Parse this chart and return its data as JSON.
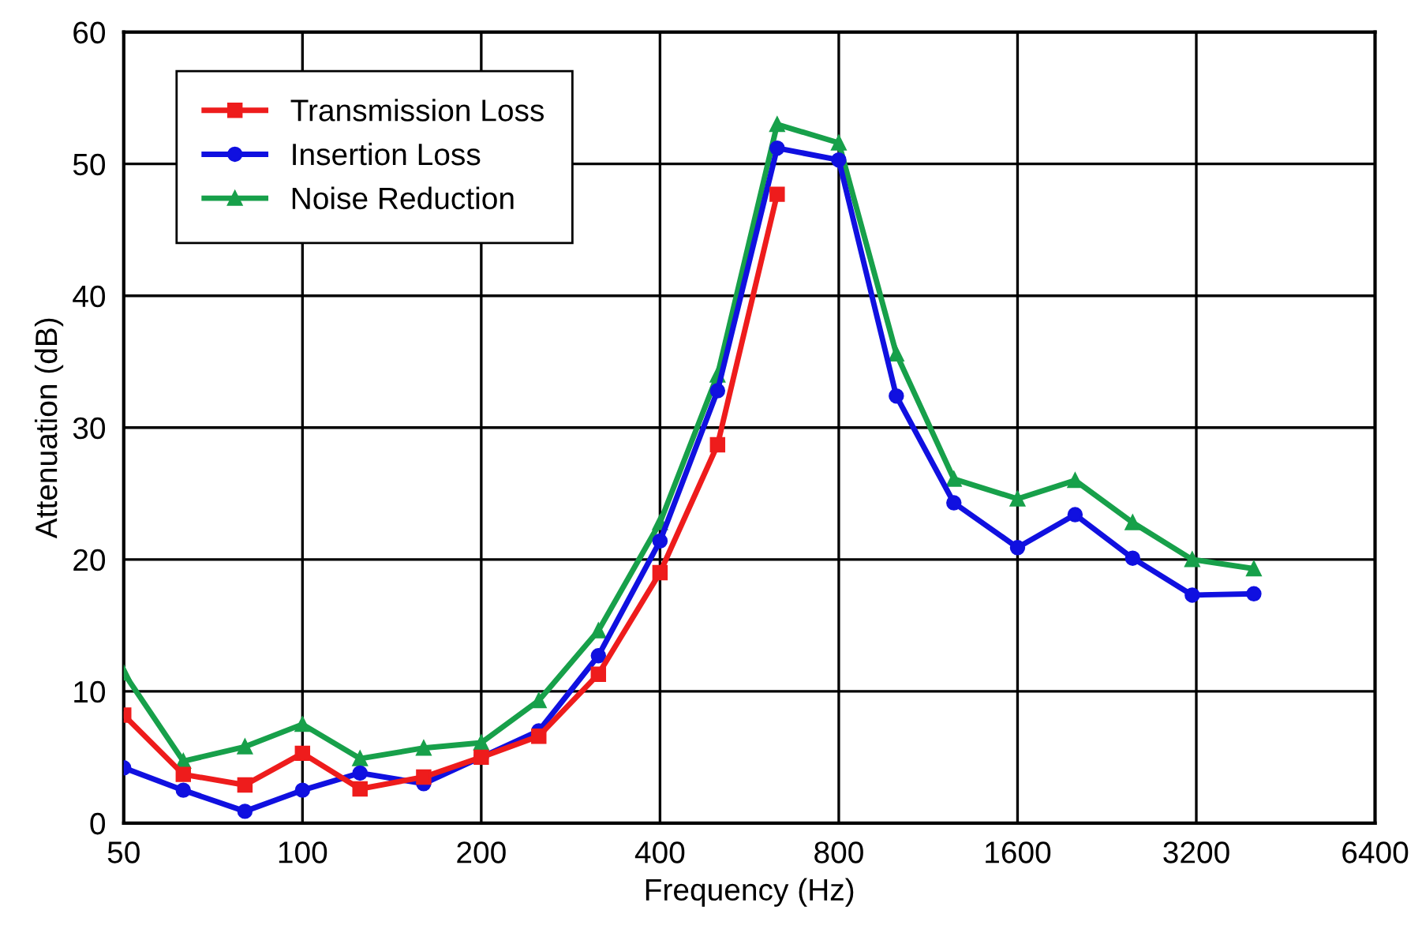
{
  "chart_data": {
    "type": "line",
    "xlabel": "Frequency (Hz)",
    "ylabel": "Attenuation (dB)",
    "log": "x",
    "xlim": [
      50,
      6400
    ],
    "xticks": [
      50,
      100,
      200,
      400,
      800,
      1600,
      3200,
      6400
    ],
    "ylim": [
      0,
      60
    ],
    "yticks": [
      0,
      10,
      20,
      30,
      40,
      50,
      60
    ],
    "grid": true,
    "legend": "top left",
    "line_style": "solid",
    "series": [
      {
        "name": "Transmission Loss",
        "color": "#ee1c1c",
        "marker": "square",
        "x": [
          50,
          63,
          80,
          100,
          125,
          160,
          200,
          250,
          315,
          400,
          500,
          630
        ],
        "values": [
          8.2,
          3.7,
          2.9,
          5.3,
          2.6,
          3.5,
          5.0,
          6.6,
          11.3,
          19.0,
          28.7,
          47.7
        ]
      },
      {
        "name": "Insertion Loss",
        "color": "#1010e0",
        "marker": "circle",
        "x": [
          50,
          63,
          80,
          100,
          125,
          160,
          200,
          250,
          315,
          400,
          500,
          630,
          800,
          1000,
          1250,
          1600,
          2000,
          2500,
          3150,
          4000
        ],
        "values": [
          4.2,
          2.5,
          0.9,
          2.5,
          3.8,
          3.0,
          5.0,
          7.0,
          12.7,
          21.4,
          32.8,
          51.2,
          50.3,
          32.4,
          24.3,
          20.9,
          23.4,
          20.1,
          17.3,
          17.4
        ]
      },
      {
        "name": "Noise Reduction",
        "color": "#17a04a",
        "marker": "triangle",
        "x": [
          50,
          63,
          80,
          100,
          125,
          160,
          200,
          250,
          315,
          400,
          500,
          630,
          800,
          1000,
          1250,
          1600,
          2000,
          2500,
          3150,
          4000
        ],
        "values": [
          11.4,
          4.7,
          5.8,
          7.5,
          4.9,
          5.7,
          6.1,
          9.3,
          14.6,
          22.8,
          34.0,
          53.0,
          51.6,
          35.6,
          26.1,
          24.6,
          26.0,
          22.8,
          20.0,
          19.3
        ]
      }
    ]
  }
}
